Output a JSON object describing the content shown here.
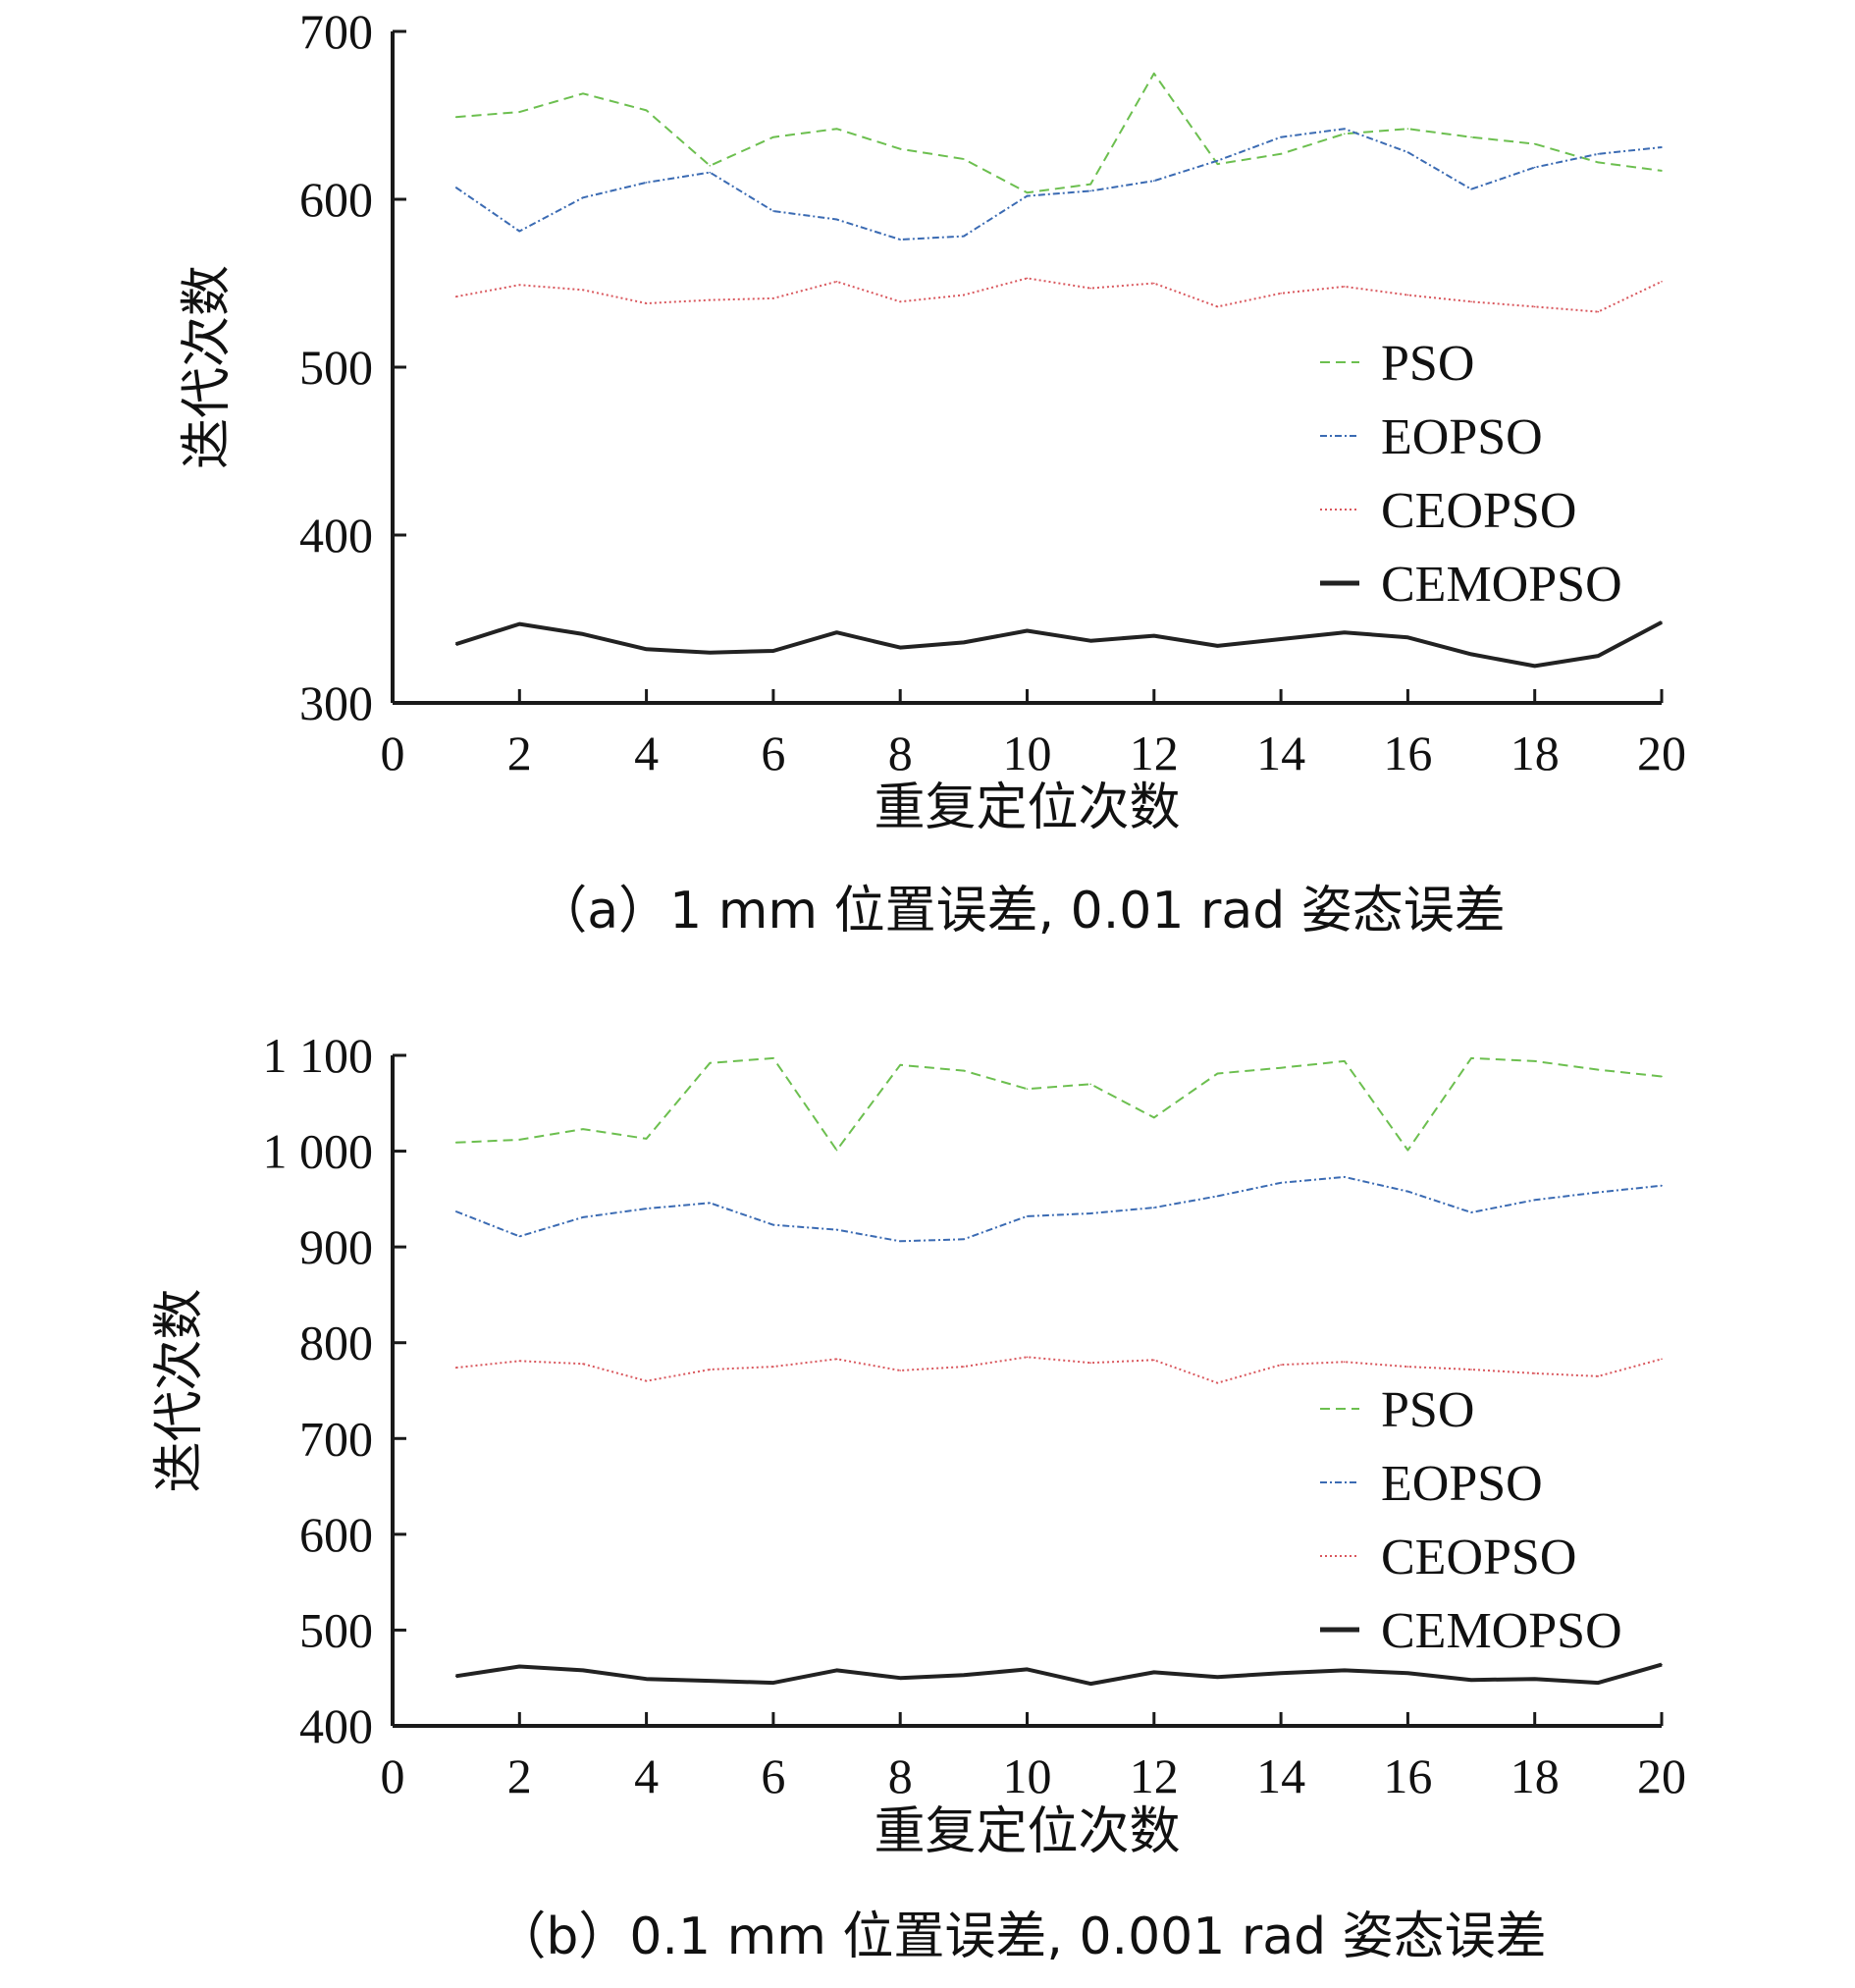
{
  "chart_data": [
    {
      "type": "line",
      "caption": "（a）1 mm 位置误差, 0.01 rad 姿态误差",
      "xlabel": "重复定位次数",
      "ylabel": "迭代次数",
      "xlim": [
        0,
        20
      ],
      "ylim": [
        300,
        700
      ],
      "xticks": [
        "0",
        "2",
        "4",
        "6",
        "8",
        "10",
        "12",
        "14",
        "16",
        "18",
        "20"
      ],
      "yticks": [
        "300",
        "400",
        "500",
        "600",
        "700"
      ],
      "legend_position": "right",
      "x": [
        1,
        2,
        3,
        4,
        5,
        6,
        7,
        8,
        9,
        10,
        11,
        12,
        13,
        14,
        15,
        16,
        17,
        18,
        19,
        20
      ],
      "series": [
        {
          "name": "PSO",
          "color": "#6cbf4f",
          "style": "dashed",
          "values": [
            649,
            652,
            663,
            653,
            620,
            637,
            642,
            630,
            624,
            604,
            609,
            675,
            621,
            627,
            639,
            642,
            637,
            633,
            622,
            617
          ]
        },
        {
          "name": "EOPSO",
          "color": "#3b6bb3",
          "style": "dashdot",
          "values": [
            607,
            581,
            601,
            610,
            616,
            593,
            588,
            576,
            578,
            602,
            605,
            611,
            623,
            637,
            642,
            628,
            606,
            619,
            627,
            631
          ]
        },
        {
          "name": "CEOPSO",
          "color": "#d9575d",
          "style": "dotted",
          "values": [
            542,
            549,
            546,
            538,
            540,
            541,
            551,
            539,
            543,
            553,
            547,
            550,
            536,
            544,
            548,
            543,
            539,
            536,
            533,
            551
          ]
        },
        {
          "name": "CEMOPSO",
          "color": "#222222",
          "style": "solid",
          "values": [
            335,
            347,
            341,
            332,
            330,
            331,
            342,
            333,
            336,
            343,
            337,
            340,
            334,
            338,
            342,
            339,
            329,
            322,
            328,
            348
          ]
        }
      ]
    },
    {
      "type": "line",
      "caption": "（b）0.1 mm 位置误差, 0.001 rad 姿态误差",
      "xlabel": "重复定位次数",
      "ylabel": "迭代次数",
      "xlim": [
        0,
        20
      ],
      "ylim": [
        400,
        1100
      ],
      "xticks": [
        "0",
        "2",
        "4",
        "6",
        "8",
        "10",
        "12",
        "14",
        "16",
        "18",
        "20"
      ],
      "yticks": [
        "400",
        "500",
        "600",
        "700",
        "800",
        "900",
        "1 000",
        "1 100"
      ],
      "legend_position": "right",
      "x": [
        1,
        2,
        3,
        4,
        5,
        6,
        7,
        8,
        9,
        10,
        11,
        12,
        13,
        14,
        15,
        16,
        17,
        18,
        19,
        20
      ],
      "series": [
        {
          "name": "PSO",
          "color": "#6cbf4f",
          "style": "dashed",
          "values": [
            1009,
            1012,
            1023,
            1013,
            1092,
            1097,
            1001,
            1090,
            1084,
            1065,
            1070,
            1035,
            1081,
            1087,
            1094,
            1001,
            1097,
            1094,
            1085,
            1078
          ]
        },
        {
          "name": "EOPSO",
          "color": "#3b6bb3",
          "style": "dashdot",
          "values": [
            937,
            911,
            931,
            940,
            946,
            923,
            918,
            906,
            908,
            932,
            935,
            941,
            953,
            967,
            973,
            958,
            936,
            949,
            957,
            964
          ]
        },
        {
          "name": "CEOPSO",
          "color": "#d9575d",
          "style": "dotted",
          "values": [
            774,
            781,
            778,
            760,
            772,
            775,
            783,
            771,
            775,
            785,
            779,
            782,
            758,
            777,
            780,
            775,
            772,
            768,
            765,
            783
          ]
        },
        {
          "name": "CEMOPSO",
          "color": "#222222",
          "style": "solid",
          "values": [
            452,
            462,
            458,
            449,
            447,
            445,
            458,
            450,
            453,
            459,
            444,
            456,
            451,
            455,
            458,
            455,
            448,
            449,
            445,
            464
          ]
        }
      ]
    }
  ]
}
